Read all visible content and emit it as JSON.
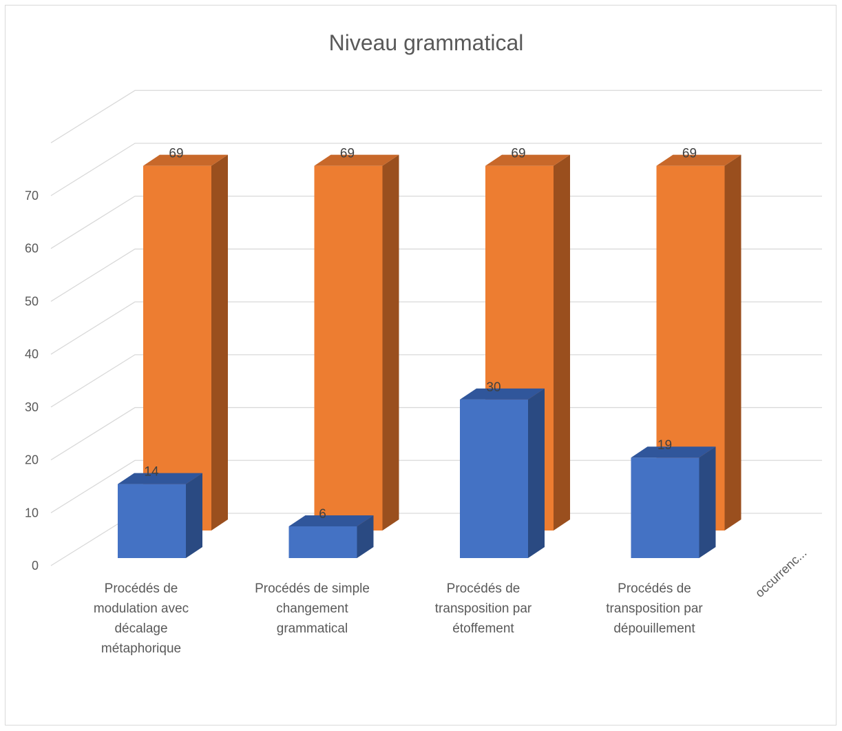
{
  "chart_data": {
    "type": "bar",
    "title": "Niveau grammatical",
    "categories": [
      [
        "Procédés  de",
        "modulation avec",
        "décalage",
        "métaphorique"
      ],
      [
        "Procédés  de simple",
        "changement",
        "grammatical"
      ],
      [
        "Procédés  de",
        "transposition par",
        "étoffement"
      ],
      [
        "Procédés de",
        "transposition par",
        "dépouillement"
      ]
    ],
    "depth_label": "occurrenc...",
    "yticks": [
      "0",
      "10",
      "20",
      "30",
      "40",
      "50",
      "60",
      "70"
    ],
    "ylim": [
      0,
      70
    ],
    "grid": true,
    "series": [
      {
        "values": [
          14,
          6,
          30,
          19
        ],
        "labels": [
          "14",
          "6",
          "30",
          "19"
        ],
        "color": "#4472c4",
        "side_color": "#2a4a82",
        "top_color": "#30569b"
      },
      {
        "values": [
          69,
          69,
          69,
          69
        ],
        "labels": [
          "69",
          "69",
          "69",
          "69"
        ],
        "color": "#ed7d31",
        "side_color": "#9a4f1e",
        "top_color": "#c8682a"
      }
    ]
  }
}
